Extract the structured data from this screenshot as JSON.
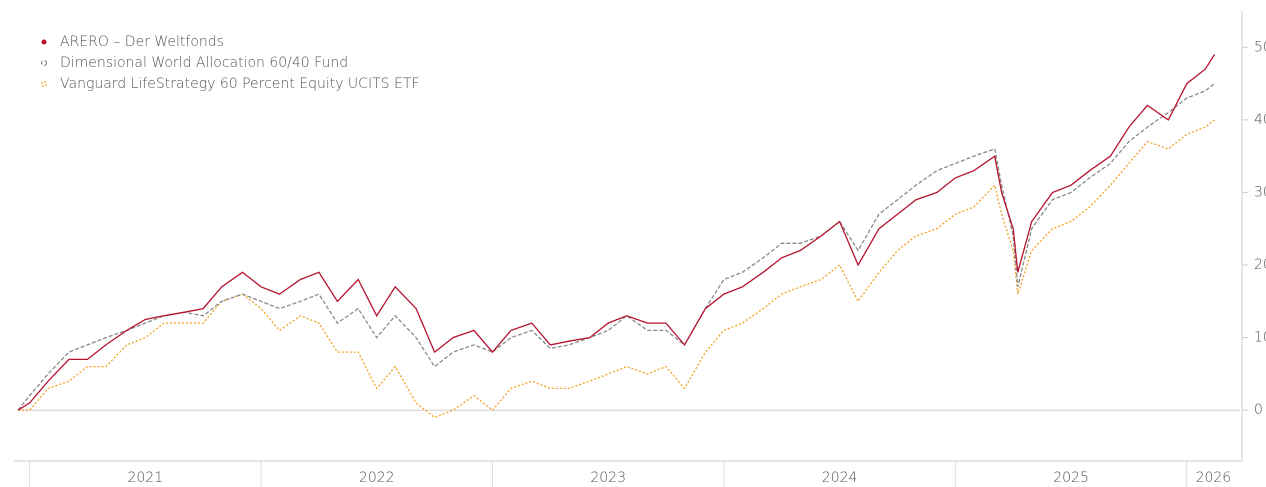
{
  "chart_data": {
    "type": "line",
    "x": [
      2020.95,
      2021.0,
      2021.08,
      2021.17,
      2021.25,
      2021.33,
      2021.42,
      2021.5,
      2021.58,
      2021.67,
      2021.75,
      2021.83,
      2021.92,
      2022.0,
      2022.08,
      2022.17,
      2022.25,
      2022.33,
      2022.42,
      2022.5,
      2022.58,
      2022.67,
      2022.75,
      2022.83,
      2022.92,
      2023.0,
      2023.08,
      2023.17,
      2023.25,
      2023.33,
      2023.42,
      2023.5,
      2023.58,
      2023.67,
      2023.75,
      2023.83,
      2023.92,
      2024.0,
      2024.08,
      2024.17,
      2024.25,
      2024.33,
      2024.42,
      2024.5,
      2024.58,
      2024.67,
      2024.75,
      2024.83,
      2024.92,
      2025.0,
      2025.08,
      2025.17,
      2025.2,
      2025.25,
      2025.27,
      2025.33,
      2025.42,
      2025.5,
      2025.58,
      2025.67,
      2025.75,
      2025.83,
      2025.92,
      2026.0,
      2026.08,
      2026.12
    ],
    "series": [
      {
        "name": "ARERO – Der Weltfonds",
        "color": "#b5122e",
        "style": "solid",
        "values": [
          0,
          1,
          4,
          7,
          7,
          9,
          11,
          12.5,
          13,
          13.5,
          14,
          17,
          19,
          17,
          16,
          18,
          19,
          15,
          18,
          13,
          17,
          14,
          8,
          10,
          11,
          8,
          11,
          12,
          9,
          9.5,
          10,
          12,
          13,
          12,
          12,
          9,
          14,
          16,
          17,
          19,
          21,
          22,
          24,
          26,
          20,
          25,
          27,
          29,
          30,
          32,
          33,
          35,
          30,
          25,
          19,
          26,
          30,
          31,
          33,
          35,
          39,
          42,
          40,
          45,
          47,
          49
        ]
      },
      {
        "name": "Dimensional World Allocation 60/40 Fund",
        "color": "#8a8a8a",
        "style": "dashed",
        "values": [
          0,
          2,
          5,
          8,
          9,
          10,
          11,
          12,
          13,
          13.5,
          13,
          15,
          16,
          15,
          14,
          15,
          16,
          12,
          14,
          10,
          13,
          10,
          6,
          8,
          9,
          8,
          10,
          11,
          8.5,
          9,
          10,
          11,
          13,
          11,
          11,
          9,
          14,
          18,
          19,
          21,
          23,
          23,
          24,
          26,
          22,
          27,
          29,
          31,
          33,
          34,
          35,
          36,
          31,
          24,
          17,
          25,
          29,
          30,
          32,
          34,
          37,
          39,
          41,
          43,
          44,
          45
        ]
      },
      {
        "name": "Vanguard LifeStrategy 60 Percent Equity UCITS ETF",
        "color": "#f0a21e",
        "style": "dotted",
        "values": [
          0,
          0,
          3,
          4,
          6,
          6,
          9,
          10,
          12,
          12,
          12,
          15,
          16,
          14,
          11,
          13,
          12,
          8,
          8,
          3,
          6,
          1,
          -1,
          0,
          2,
          0,
          3,
          4,
          3,
          3,
          4,
          5,
          6,
          5,
          6,
          3,
          8,
          11,
          12,
          14,
          16,
          17,
          18,
          20,
          15,
          19,
          22,
          24,
          25,
          27,
          28,
          31,
          27,
          22,
          16,
          22,
          25,
          26,
          28,
          31,
          34,
          37,
          36,
          38,
          39,
          40
        ]
      }
    ],
    "xlim": [
      2020.95,
      2026.23
    ],
    "xticks": [
      2021,
      2022,
      2023,
      2024,
      2025,
      2026
    ],
    "ylim": [
      -7,
      55
    ],
    "yticks": [
      0,
      10,
      20,
      30,
      40,
      50
    ],
    "legend": "top-left"
  }
}
